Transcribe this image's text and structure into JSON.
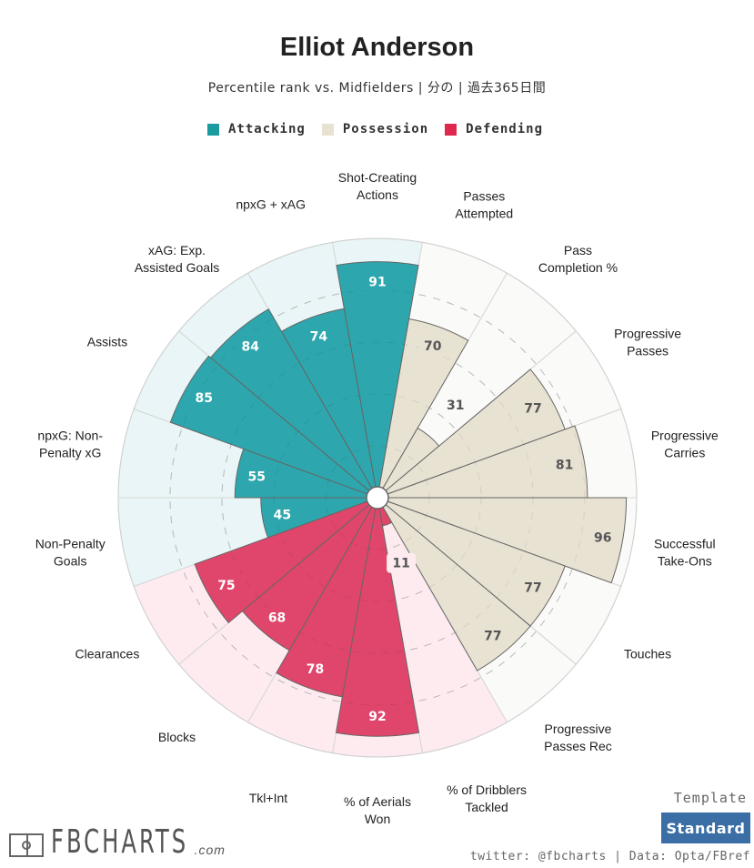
{
  "header": {
    "title": "Elliot Anderson",
    "subtitle": "Percentile rank vs. Midfielders | 分の | 過去365日間"
  },
  "footer": {
    "template_label": "Template",
    "template_button": "Standard",
    "credit": "twitter: @fbcharts | Data: Opta/FBref",
    "logo_text": "FBCHARTS",
    "logo_suffix": ".com"
  },
  "chart_data": {
    "type": "pizza",
    "title": "Elliot Anderson",
    "subtitle": "Percentile rank vs. Midfielders | 分の | 過去365日間",
    "range": [
      0,
      100
    ],
    "gridlines": [
      20,
      40,
      60,
      80
    ],
    "legend": [
      {
        "name": "Attacking",
        "color": "#2ea6ad",
        "bg": "#e9f5f6"
      },
      {
        "name": "Possession",
        "color": "#e8e2d3",
        "bg": "#fafaf8"
      },
      {
        "name": "Defending",
        "color": "#e0466b",
        "bg": "#fdebf0"
      }
    ],
    "categories": [
      {
        "label": [
          "Shot-Creating",
          "Actions"
        ],
        "value": 91,
        "group": 0
      },
      {
        "label": [
          "Passes",
          "Attempted"
        ],
        "value": 70,
        "group": 1
      },
      {
        "label": [
          "Pass",
          "Completion %"
        ],
        "value": 31,
        "group": 1
      },
      {
        "label": [
          "Progressive",
          "Passes"
        ],
        "value": 77,
        "group": 1
      },
      {
        "label": [
          "Progressive",
          "Carries"
        ],
        "value": 81,
        "group": 1
      },
      {
        "label": [
          "Successful",
          "Take-Ons"
        ],
        "value": 96,
        "group": 1
      },
      {
        "label": [
          "Touches"
        ],
        "value": 77,
        "group": 1
      },
      {
        "label": [
          "Progressive",
          "Passes Rec"
        ],
        "value": 77,
        "group": 1
      },
      {
        "label": [
          "% of Dribblers",
          "Tackled"
        ],
        "value": 11,
        "group": 2
      },
      {
        "label": [
          "% of Aerials",
          "Won"
        ],
        "value": 92,
        "group": 2
      },
      {
        "label": [
          "Tkl+Int"
        ],
        "value": 78,
        "group": 2
      },
      {
        "label": [
          "Blocks"
        ],
        "value": 68,
        "group": 2
      },
      {
        "label": [
          "Clearances"
        ],
        "value": 75,
        "group": 2
      },
      {
        "label": [
          "Non-Penalty",
          "Goals"
        ],
        "value": 45,
        "group": 0
      },
      {
        "label": [
          "npxG: Non-",
          "Penalty xG"
        ],
        "value": 55,
        "group": 0
      },
      {
        "label": [
          "Assists"
        ],
        "value": 85,
        "group": 0
      },
      {
        "label": [
          "xAG: Exp.",
          "Assisted Goals"
        ],
        "value": 84,
        "group": 0
      },
      {
        "label": [
          "npxG + xAG"
        ],
        "value": 74,
        "group": 0
      }
    ]
  }
}
